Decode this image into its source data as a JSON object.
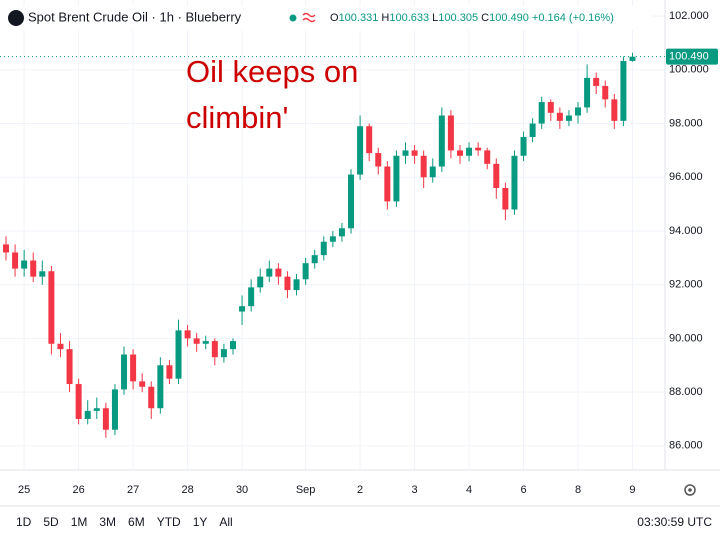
{
  "chart_data": {
    "type": "candlestick",
    "title": "Spot Brent Crude Oil · 1h · Blueberry",
    "ohlc_header": [
      {
        "key": "O",
        "value": "100.331"
      },
      {
        "key": "H",
        "value": "100.633"
      },
      {
        "key": "L",
        "value": "100.305"
      },
      {
        "key": "C",
        "value": "100.490"
      }
    ],
    "change": "+0.164 (+0.16%)",
    "annotation": [
      "Oil keeps on",
      "climbin'"
    ],
    "up_color": "#089981",
    "down_color": "#f23645",
    "annotation_color": "#cc0000",
    "grid": true,
    "open": [
      93.5,
      93.2,
      92.6,
      92.9,
      92.3,
      92.5,
      89.8,
      89.6,
      88.3,
      87.0,
      87.3,
      87.4,
      86.6,
      88.1,
      89.4,
      88.4,
      88.2,
      87.4,
      89.0,
      88.5,
      90.3,
      90.0,
      89.8,
      89.9,
      89.3,
      89.6,
      91.0,
      91.2,
      91.9,
      92.3,
      92.6,
      92.3,
      91.8,
      92.2,
      92.8,
      93.1,
      93.6,
      93.8,
      94.1,
      96.1,
      97.9,
      96.9,
      96.4,
      95.1,
      96.8,
      97.0,
      96.8,
      96.0,
      96.4,
      98.3,
      97.0,
      96.8,
      97.1,
      97.0,
      96.5,
      95.6,
      94.8,
      96.8,
      97.5,
      98.0,
      98.8,
      98.4,
      98.1,
      98.3,
      98.6,
      99.7,
      99.4,
      98.9,
      98.1,
      100.331
    ],
    "high": [
      93.8,
      93.5,
      93.3,
      93.2,
      92.9,
      92.7,
      90.2,
      89.9,
      88.5,
      87.7,
      87.8,
      87.6,
      88.3,
      89.7,
      89.6,
      88.7,
      88.4,
      89.3,
      89.2,
      90.7,
      90.5,
      90.2,
      90.1,
      90.0,
      89.8,
      90.0,
      91.6,
      92.2,
      92.6,
      92.9,
      92.8,
      92.5,
      92.4,
      93.0,
      93.3,
      93.8,
      94.0,
      94.3,
      96.3,
      98.3,
      98.0,
      97.1,
      96.6,
      97.0,
      97.3,
      97.2,
      97.0,
      96.7,
      98.6,
      98.5,
      97.2,
      97.3,
      97.3,
      97.1,
      96.7,
      95.8,
      97.0,
      97.7,
      98.2,
      99.0,
      98.9,
      98.6,
      98.5,
      98.8,
      100.2,
      99.9,
      99.6,
      99.1,
      100.5,
      100.633
    ],
    "low": [
      92.9,
      92.3,
      92.3,
      92.1,
      92.0,
      89.4,
      89.3,
      88.0,
      86.8,
      86.8,
      87.0,
      86.3,
      86.4,
      87.9,
      88.1,
      88.0,
      87.0,
      87.2,
      88.3,
      88.3,
      89.7,
      89.5,
      89.6,
      89.0,
      89.1,
      89.4,
      90.5,
      91.0,
      91.7,
      92.1,
      92.0,
      91.5,
      91.6,
      92.0,
      92.6,
      92.9,
      93.4,
      93.6,
      93.9,
      95.9,
      96.6,
      96.1,
      94.8,
      94.9,
      96.5,
      96.5,
      95.6,
      95.8,
      96.2,
      96.7,
      96.5,
      96.6,
      96.8,
      96.3,
      95.2,
      94.4,
      94.6,
      96.6,
      97.3,
      97.8,
      98.1,
      97.8,
      97.9,
      98.0,
      98.4,
      99.1,
      98.6,
      97.8,
      97.9,
      100.305
    ],
    "close": [
      93.2,
      92.6,
      92.9,
      92.3,
      92.5,
      89.8,
      89.6,
      88.3,
      87.0,
      87.3,
      87.4,
      86.6,
      88.1,
      89.4,
      88.4,
      88.2,
      87.4,
      89.0,
      88.5,
      90.3,
      90.0,
      89.8,
      89.9,
      89.3,
      89.6,
      89.9,
      91.2,
      91.9,
      92.3,
      92.6,
      92.3,
      91.8,
      92.2,
      92.8,
      93.1,
      93.6,
      93.8,
      94.1,
      96.1,
      97.9,
      96.9,
      96.4,
      95.1,
      96.8,
      97.0,
      96.8,
      96.0,
      96.4,
      98.3,
      97.0,
      96.8,
      97.1,
      97.0,
      96.5,
      95.6,
      94.8,
      96.8,
      97.5,
      98.0,
      98.8,
      98.4,
      98.1,
      98.3,
      98.6,
      99.7,
      99.4,
      98.9,
      98.1,
      100.33,
      100.49
    ],
    "xlim": [
      -0.66,
      72.58
    ],
    "xticks": [
      {
        "value": 2,
        "label": "25"
      },
      {
        "value": 8,
        "label": "26"
      },
      {
        "value": 14,
        "label": "27"
      },
      {
        "value": 20,
        "label": "28"
      },
      {
        "value": 26,
        "label": "30"
      },
      {
        "value": 33,
        "label": "Sep"
      },
      {
        "value": 39,
        "label": "2"
      },
      {
        "value": 45,
        "label": "3"
      },
      {
        "value": 51,
        "label": "4"
      },
      {
        "value": 57,
        "label": "6"
      },
      {
        "value": 63,
        "label": "8"
      },
      {
        "value": 69,
        "label": "9"
      }
    ],
    "ylim": [
      85.1,
      102.6
    ],
    "yticks": [
      {
        "value": 86,
        "label": "86.000"
      },
      {
        "value": 88,
        "label": "88.000"
      },
      {
        "value": 90,
        "label": "90.000"
      },
      {
        "value": 92,
        "label": "92.000"
      },
      {
        "value": 94,
        "label": "94.000"
      },
      {
        "value": 96,
        "label": "96.000"
      },
      {
        "value": 98,
        "label": "98.000"
      },
      {
        "value": 100,
        "label": "100.000"
      },
      {
        "value": 102,
        "label": "102.000"
      }
    ],
    "ranges": [
      "1D",
      "5D",
      "1M",
      "3M",
      "6M",
      "YTD",
      "1Y",
      "All"
    ],
    "clock": "03:30:59 UTC"
  }
}
